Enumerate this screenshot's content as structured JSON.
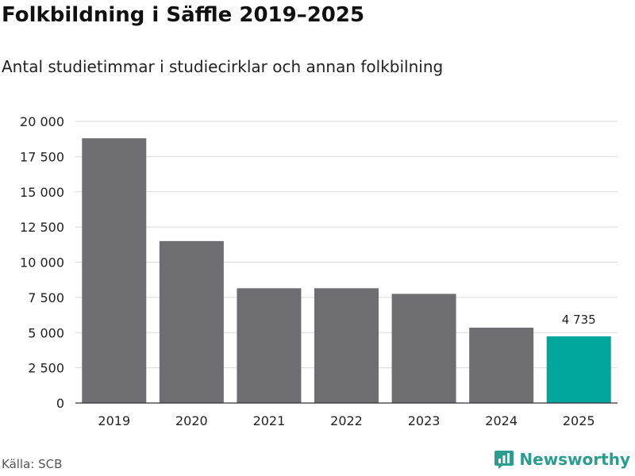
{
  "chart_data": {
    "type": "bar",
    "title": "Folkbildning i Säffle 2019–2025",
    "subtitle": "Antal studietimmar i studiecirklar och annan folkbilning",
    "categories": [
      "2019",
      "2020",
      "2021",
      "2022",
      "2023",
      "2024",
      "2025"
    ],
    "values": [
      18800,
      11500,
      8150,
      8150,
      7750,
      5350,
      4735
    ],
    "ylim": [
      0,
      20000
    ],
    "yticks": [
      0,
      2500,
      5000,
      7500,
      10000,
      12500,
      15000,
      17500,
      20000
    ],
    "ytick_labels": [
      "0",
      "2 500",
      "5 000",
      "7 500",
      "10 000",
      "12 500",
      "15 000",
      "17 500",
      "20 000"
    ],
    "data_labels": [
      null,
      null,
      null,
      null,
      null,
      null,
      "4 735"
    ],
    "xlabel": "",
    "ylabel": "",
    "grid": true,
    "colors": {
      "bar": "#6d6d72",
      "highlight": "#00a59b",
      "grid": "#d9d9d9",
      "axis": "#333333"
    }
  },
  "footer": {
    "source": "Källa: SCB",
    "brand": "Newsworthy",
    "brand_icon": "newsworthy-logo-icon",
    "brand_color": "#2a9d8f"
  }
}
